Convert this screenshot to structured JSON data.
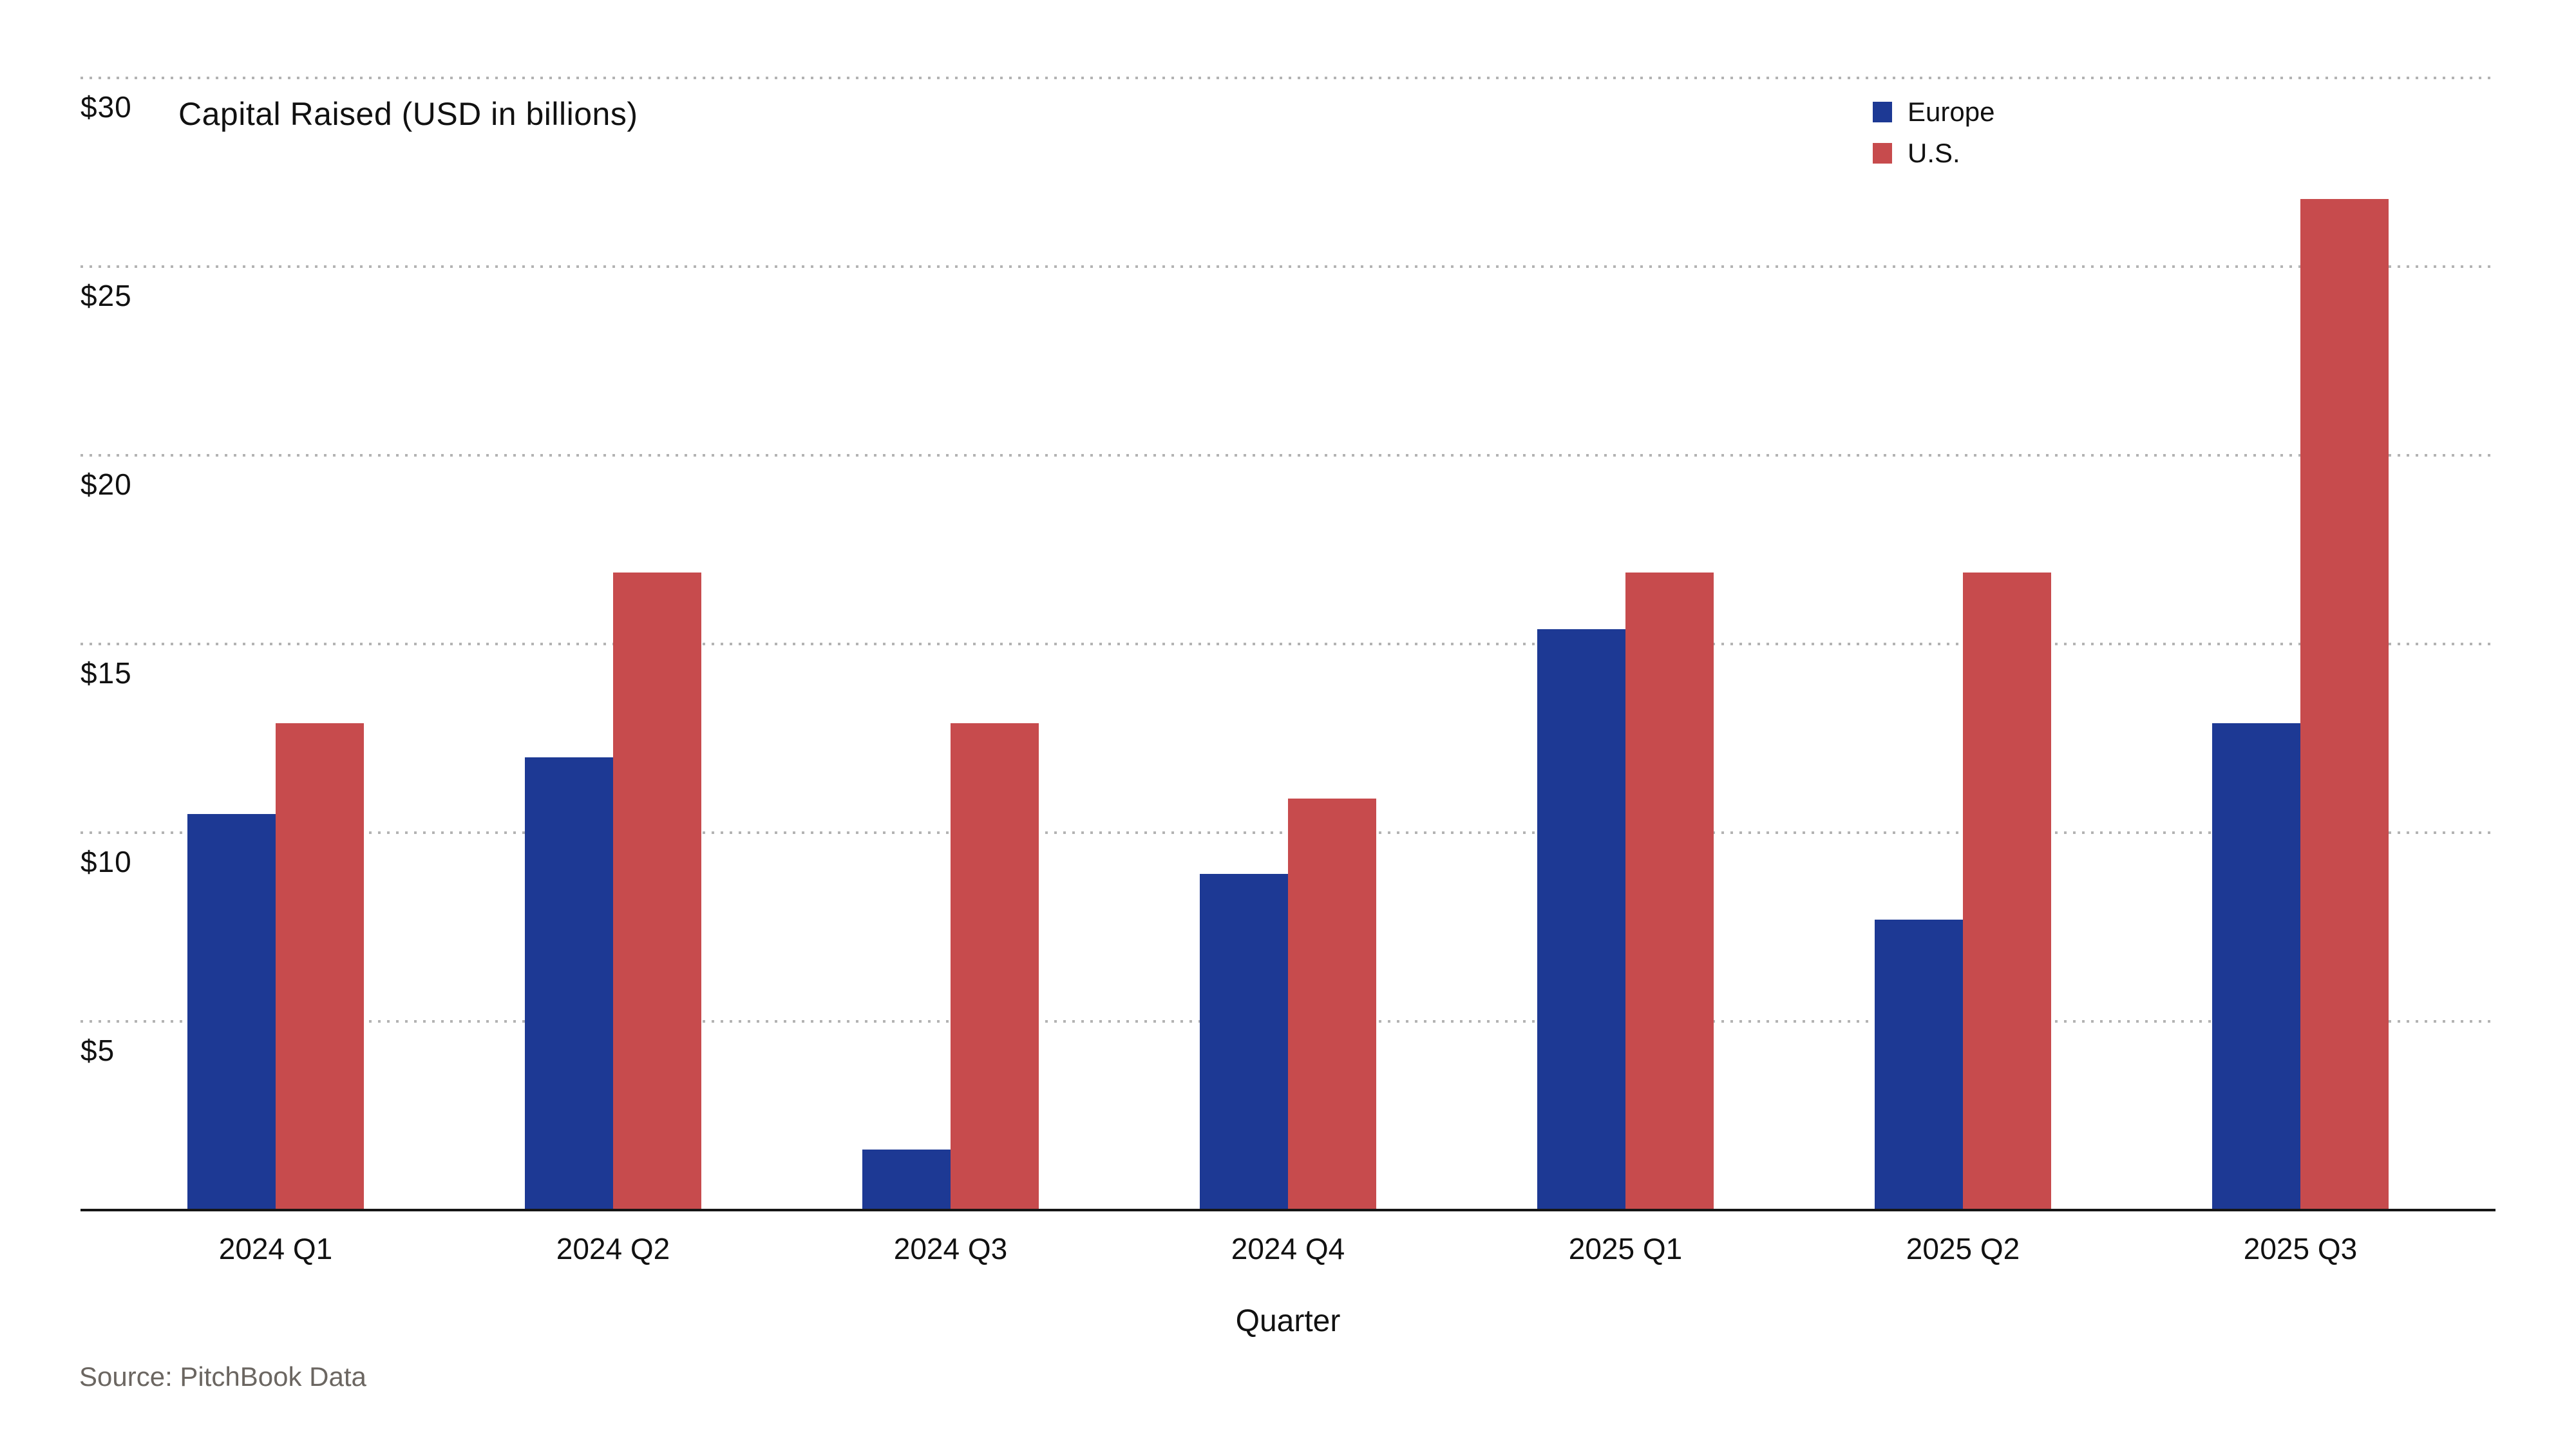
{
  "chart": {
    "title": "Capital Raised (USD in billions)",
    "source": "Source: PitchBook Data"
  },
  "colors": {
    "europe": "#1d3994",
    "us": "#c74b4d",
    "axis_line": "#161616",
    "gridline": "#b3b3b3",
    "text": "#111111",
    "source_text": "#6b6661",
    "background": "#ffffff"
  },
  "chart_data": {
    "type": "bar",
    "title": "Capital Raised (USD in billions)",
    "xlabel": "Quarter",
    "ylabel": "",
    "ylim": [
      0,
      30
    ],
    "grid": "horizontal dotted lines at $5 intervals, no y-axis line",
    "legend_position": "top-right",
    "yticks": [
      {
        "label": "$5",
        "value": 5
      },
      {
        "label": "$10",
        "value": 10
      },
      {
        "label": "$15",
        "value": 15
      },
      {
        "label": "$20",
        "value": 20
      },
      {
        "label": "$25",
        "value": 25
      },
      {
        "label": "$30",
        "value": 30
      }
    ],
    "categories": [
      "2024 Q1",
      "2024 Q2",
      "2024 Q3",
      "2024 Q4",
      "2025 Q1",
      "2025 Q2",
      "2025 Q3"
    ],
    "series": [
      {
        "name": "Europe",
        "color": "#1d3994",
        "values": [
          10.5,
          12.0,
          1.6,
          8.9,
          15.4,
          7.7,
          12.9
        ]
      },
      {
        "name": "U.S.",
        "color": "#c74b4d",
        "values": [
          12.9,
          16.9,
          12.9,
          10.9,
          16.9,
          16.9,
          26.8
        ]
      }
    ],
    "source": "Source: PitchBook Data"
  }
}
